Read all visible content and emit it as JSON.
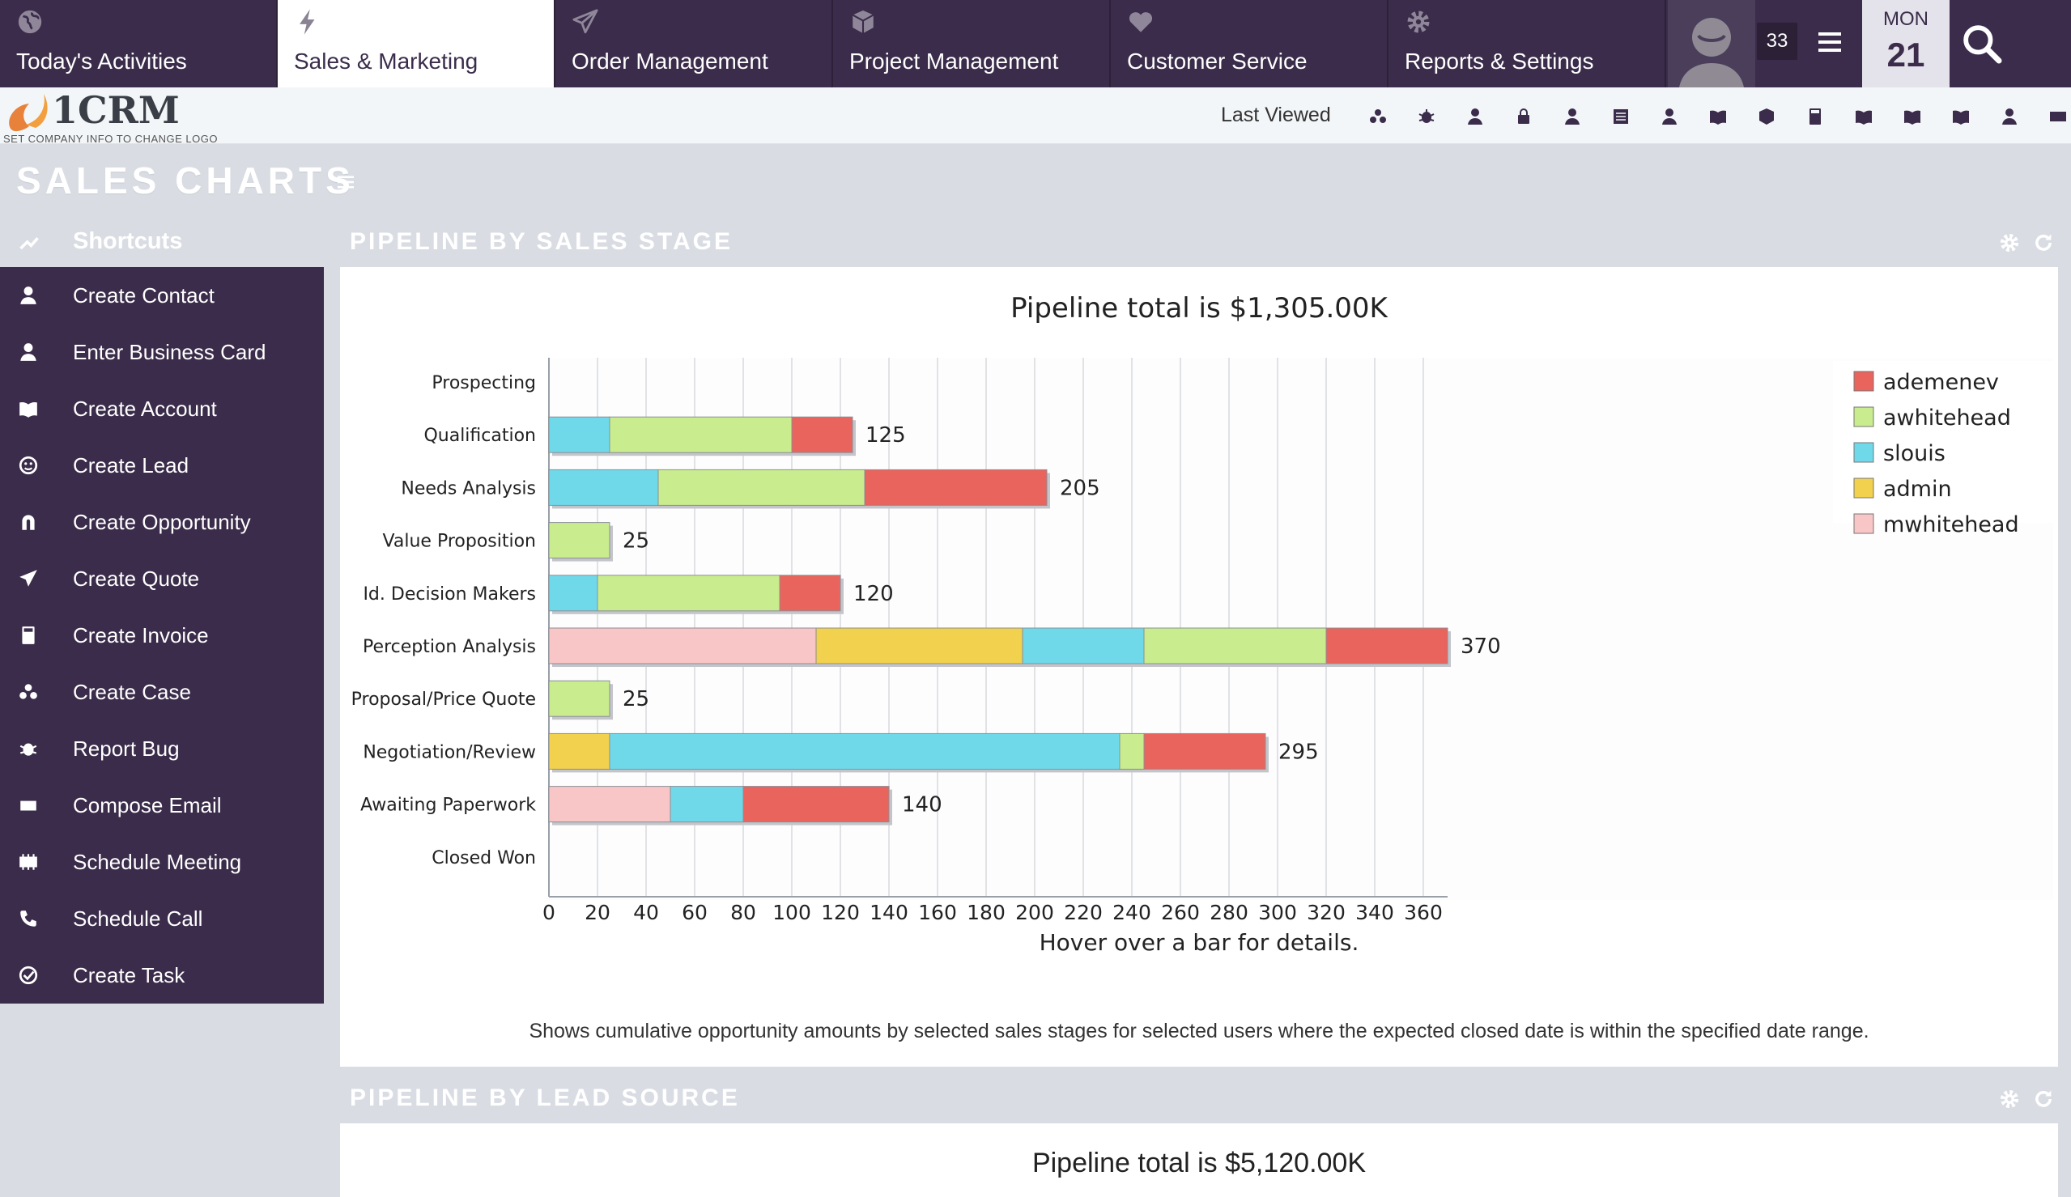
{
  "nav": {
    "tabs": [
      {
        "label": "Today's Activities",
        "icon": "globe-icon"
      },
      {
        "label": "Sales & Marketing",
        "icon": "lightning-icon"
      },
      {
        "label": "Order Management",
        "icon": "paper-plane-icon"
      },
      {
        "label": "Project Management",
        "icon": "cube-icon"
      },
      {
        "label": "Customer Service",
        "icon": "heart-icon"
      },
      {
        "label": "Reports & Settings",
        "icon": "gear-icon"
      }
    ],
    "active_tab": "Sales & Marketing",
    "notification_count": "33",
    "date_dow": "MON",
    "date_day": "21"
  },
  "subbar": {
    "logo_text": "1CRM",
    "logo_subtext": "SET COMPANY INFO TO CHANGE LOGO",
    "last_viewed_label": "Last Viewed",
    "recent_icons": [
      "case-icon",
      "bug-icon",
      "contact-icon",
      "lock-icon",
      "contact-icon",
      "document-icon",
      "contact-icon",
      "account-icon",
      "cube-icon",
      "calculator-icon",
      "account-icon",
      "account-icon",
      "account-icon",
      "contact-icon",
      "email-icon"
    ]
  },
  "page": {
    "title": "SALES CHARTS"
  },
  "sidebar": {
    "header": "Shortcuts",
    "items": [
      {
        "label": "Create Contact",
        "icon": "contact-icon"
      },
      {
        "label": "Enter Business Card",
        "icon": "contact-icon"
      },
      {
        "label": "Create Account",
        "icon": "account-icon"
      },
      {
        "label": "Create Lead",
        "icon": "lead-icon"
      },
      {
        "label": "Create Opportunity",
        "icon": "magnet-icon"
      },
      {
        "label": "Create Quote",
        "icon": "paper-plane-icon"
      },
      {
        "label": "Create Invoice",
        "icon": "calculator-icon"
      },
      {
        "label": "Create Case",
        "icon": "case-icon"
      },
      {
        "label": "Report Bug",
        "icon": "bug-icon"
      },
      {
        "label": "Compose Email",
        "icon": "email-icon"
      },
      {
        "label": "Schedule Meeting",
        "icon": "meeting-icon"
      },
      {
        "label": "Schedule Call",
        "icon": "phone-icon"
      },
      {
        "label": "Create Task",
        "icon": "task-icon"
      }
    ]
  },
  "dashlets": {
    "pipeline_stage_title": "PIPELINE BY SALES STAGE",
    "pipeline_lead_title": "PIPELINE BY LEAD SOURCE",
    "pipeline_lead_total": "Pipeline total is $5,120.00K"
  },
  "colors": {
    "ademenev": "#e8645c",
    "awhitehead": "#c8ec8e",
    "slouis": "#6fd9ea",
    "admin": "#f2d14e",
    "mwhitehead": "#f8c6c6",
    "nav_bg": "#3a2c4a"
  },
  "chart_data": {
    "type": "bar",
    "orientation": "horizontal",
    "stacked": true,
    "title": "Pipeline total is $1,305.00K",
    "xlabel": "Hover over a bar for details.",
    "description": "Shows cumulative opportunity amounts by selected sales stages for selected users where the expected closed date is within the specified date range.",
    "xlim": [
      0,
      370
    ],
    "xticks": [
      0,
      20,
      40,
      60,
      80,
      100,
      120,
      140,
      160,
      180,
      200,
      220,
      240,
      260,
      280,
      300,
      320,
      340,
      360
    ],
    "legend_position": "top-right",
    "categories": [
      "Prospecting",
      "Qualification",
      "Needs Analysis",
      "Value Proposition",
      "Id. Decision Makers",
      "Perception Analysis",
      "Proposal/Price Quote",
      "Negotiation/Review",
      "Awaiting Paperwork",
      "Closed Won"
    ],
    "series": [
      {
        "name": "mwhitehead",
        "values": [
          0,
          0,
          0,
          0,
          0,
          110,
          0,
          0,
          50,
          0
        ]
      },
      {
        "name": "admin",
        "values": [
          0,
          0,
          0,
          0,
          0,
          85,
          0,
          25,
          0,
          0
        ]
      },
      {
        "name": "slouis",
        "values": [
          0,
          25,
          45,
          0,
          20,
          50,
          0,
          210,
          30,
          0
        ]
      },
      {
        "name": "awhitehead",
        "values": [
          0,
          75,
          85,
          25,
          75,
          75,
          25,
          10,
          0,
          0
        ]
      },
      {
        "name": "ademenev",
        "values": [
          0,
          25,
          75,
          0,
          25,
          50,
          0,
          50,
          60,
          0
        ]
      }
    ],
    "totals": [
      null,
      125,
      205,
      25,
      120,
      370,
      25,
      295,
      140,
      null
    ],
    "legend": [
      "ademenev",
      "awhitehead",
      "slouis",
      "admin",
      "mwhitehead"
    ]
  }
}
